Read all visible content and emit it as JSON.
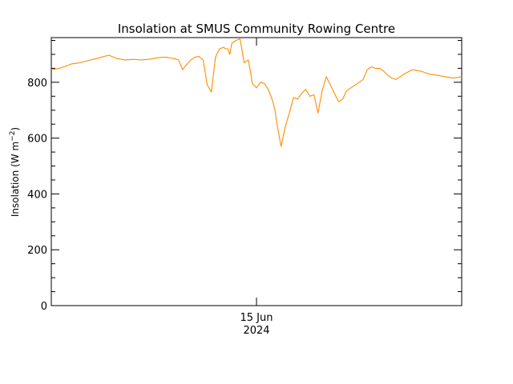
{
  "chart_data": {
    "type": "line",
    "title": "Insolation at SMUS Community Rowing Centre",
    "ylabel_main": "Insolation (W m",
    "ylabel_sup": "−2",
    "ylabel_close": ")",
    "xlabel_tick": "15 Jun",
    "xlabel_year": "2024",
    "ylim": [
      0,
      960
    ],
    "xlim": [
      0,
      100
    ],
    "y_ticks": [
      0,
      200,
      400,
      600,
      800
    ],
    "y_tick_labels": [
      "0",
      "200",
      "400",
      "600",
      "800"
    ],
    "x_tick_position": 50,
    "grid": false,
    "line_color": "#ff8c00",
    "series": [
      {
        "x": [
          0,
          2,
          4,
          5,
          7,
          9,
          11,
          13,
          14,
          16,
          18,
          20,
          22,
          24,
          26,
          28,
          29,
          30,
          31,
          32,
          33,
          34,
          35,
          36,
          37,
          38,
          39,
          40,
          41,
          42,
          42.5,
          43,
          43.5,
          44,
          45,
          46,
          47,
          48,
          49,
          50,
          51,
          52,
          53,
          54,
          54.5,
          55,
          56,
          57,
          58,
          59,
          60,
          61,
          62,
          63,
          64,
          65,
          66,
          67,
          68,
          69,
          70,
          71,
          72,
          73,
          74,
          75,
          76,
          77,
          78,
          79,
          80,
          81,
          82,
          83,
          84,
          85,
          86,
          88,
          90,
          92,
          94,
          96,
          98,
          100
        ],
        "y": [
          845,
          850,
          860,
          866,
          870,
          878,
          885,
          893,
          897,
          885,
          880,
          882,
          880,
          883,
          888,
          890,
          887,
          885,
          880,
          845,
          865,
          880,
          890,
          892,
          880,
          790,
          765,
          890,
          920,
          925,
          920,
          920,
          900,
          940,
          950,
          955,
          870,
          880,
          795,
          780,
          800,
          795,
          770,
          730,
          700,
          650,
          570,
          640,
          690,
          745,
          740,
          760,
          775,
          750,
          755,
          690,
          770,
          820,
          790,
          760,
          730,
          740,
          770,
          780,
          790,
          800,
          810,
          845,
          855,
          850,
          850,
          840,
          825,
          815,
          810,
          820,
          830,
          845,
          840,
          830,
          825,
          820,
          815,
          820
        ]
      }
    ]
  }
}
